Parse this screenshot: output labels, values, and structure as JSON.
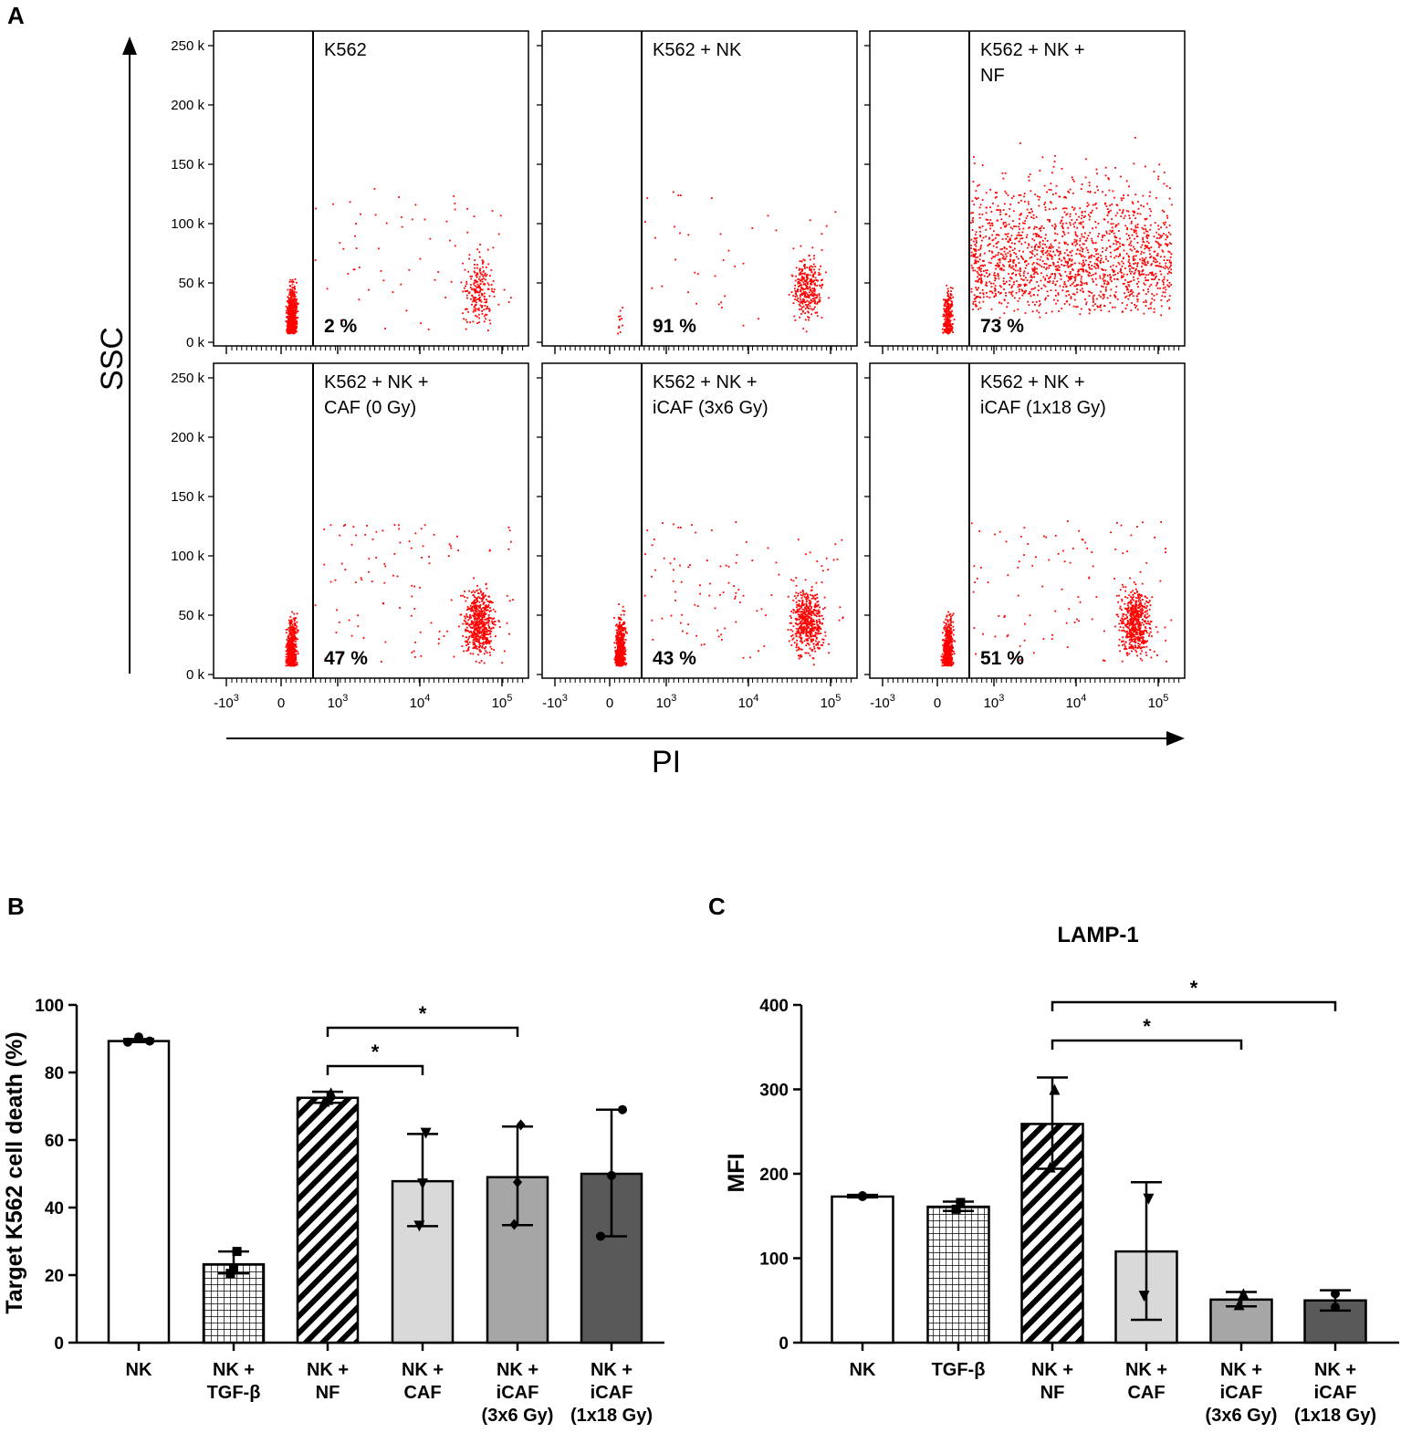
{
  "panel_letters": {
    "a": "A",
    "b": "B",
    "c": "C"
  },
  "colors": {
    "dots": "#ff0000",
    "axis": "#000000",
    "bar_white": "#ffffff",
    "bar_caf": "#d9d9d9",
    "bar_icaf36": "#a6a6a6",
    "bar_icaf118": "#595959"
  },
  "chart_data": [
    {
      "type": "scatter",
      "title": "",
      "xlabel": "PI",
      "ylabel": "SSC",
      "y_ticks": [
        "250 k",
        "200 k",
        "150 k",
        "100 k",
        "50 k",
        "0 k"
      ],
      "y_tick_values": [
        250,
        200,
        150,
        100,
        50,
        0
      ],
      "x_ticks": [
        "-10",
        "0",
        "10",
        "10",
        "10"
      ],
      "x_tick_exponents": [
        "3",
        "",
        "3",
        "4",
        "5"
      ],
      "gate": "PI threshold line separating live (left) from dead (right) K562 cells",
      "panels": [
        {
          "label": [
            "K562"
          ],
          "percent": "2 %",
          "value": 2
        },
        {
          "label": [
            "K562 + NK"
          ],
          "percent": "91 %",
          "value": 91
        },
        {
          "label": [
            "K562 + NK +",
            "NF"
          ],
          "percent": "73 %",
          "value": 73
        },
        {
          "label": [
            "K562 + NK +",
            "CAF (0 Gy)"
          ],
          "percent": "47 %",
          "value": 47
        },
        {
          "label": [
            "K562 + NK +",
            "iCAF (3x6 Gy)"
          ],
          "percent": "43 %",
          "value": 43
        },
        {
          "label": [
            "K562 + NK +",
            "iCAF (1x18 Gy)"
          ],
          "percent": "51 %",
          "value": 51
        }
      ]
    },
    {
      "type": "bar",
      "title": "",
      "ylabel": "Target K562 cell death (%)",
      "xlabel": "",
      "ylim": [
        0,
        100
      ],
      "y_ticks": [
        0,
        20,
        40,
        60,
        80,
        100
      ],
      "categories": [
        [
          "NK"
        ],
        [
          "NK +",
          "TGF-β"
        ],
        [
          "NK +",
          "NF"
        ],
        [
          "NK +",
          "CAF"
        ],
        [
          "NK +",
          "iCAF",
          "(3x6 Gy)"
        ],
        [
          "NK +",
          "iCAF",
          "(1x18 Gy)"
        ]
      ],
      "values": [
        89.3,
        23.2,
        72.5,
        47.8,
        49.0,
        50.0
      ],
      "error_low": [
        89.0,
        20.5,
        71.0,
        34.5,
        34.8,
        31.5
      ],
      "error_high": [
        89.9,
        27.0,
        74.3,
        61.8,
        64.0,
        69.0
      ],
      "points": [
        [
          89.0,
          90.5,
          89.3
        ],
        [
          20.5,
          22.0,
          27.0
        ],
        [
          71.5,
          72.0,
          74.0
        ],
        [
          34.5,
          47.0,
          62.0
        ],
        [
          35.0,
          47.5,
          64.5
        ],
        [
          31.5,
          49.5,
          69.0
        ]
      ],
      "markers": [
        "circle",
        "square",
        "triangle-up",
        "triangle-down",
        "diamond",
        "circle"
      ],
      "fills": [
        "white",
        "grid",
        "hatch",
        "#d9d9d9",
        "#a6a6a6",
        "#595959"
      ],
      "significance": [
        {
          "from": 2,
          "to": 3,
          "label": "*"
        },
        {
          "from": 2,
          "to": 4,
          "label": "*"
        }
      ]
    },
    {
      "type": "bar",
      "title": "LAMP-1",
      "ylabel": "MFI",
      "xlabel": "",
      "ylim": [
        0,
        400
      ],
      "y_ticks": [
        0,
        100,
        200,
        300,
        400
      ],
      "categories": [
        [
          "NK"
        ],
        [
          "TGF-β"
        ],
        [
          "NK +",
          "NF"
        ],
        [
          "NK +",
          "CAF"
        ],
        [
          "NK +",
          "iCAF",
          "(3x6 Gy)"
        ],
        [
          "NK +",
          "iCAF",
          "(1x18 Gy)"
        ]
      ],
      "values": [
        173,
        161,
        259,
        108,
        51,
        50
      ],
      "error_low": [
        172,
        156,
        206,
        27,
        43,
        38
      ],
      "error_high": [
        175,
        167,
        314,
        190,
        60,
        62
      ],
      "points": [
        [
          173,
          174
        ],
        [
          158,
          166
        ],
        [
          208,
          300
        ],
        [
          55,
          170
        ],
        [
          45,
          58
        ],
        [
          42,
          58
        ]
      ],
      "markers": [
        "circle",
        "square",
        "triangle-up",
        "triangle-down",
        "triangle-up",
        "circle"
      ],
      "fills": [
        "white",
        "grid",
        "hatch",
        "#d9d9d9",
        "#a6a6a6",
        "#595959"
      ],
      "significance": [
        {
          "from": 2,
          "to": 4,
          "label": "*"
        },
        {
          "from": 2,
          "to": 5,
          "label": "*"
        }
      ]
    }
  ]
}
